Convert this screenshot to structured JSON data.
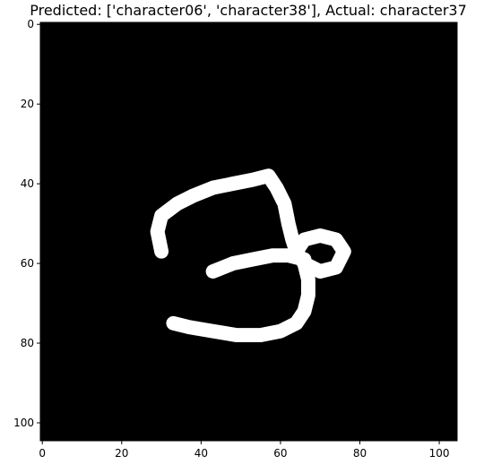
{
  "chart_data": {
    "type": "image",
    "title": "Predicted: ['character06', 'character38'], Actual: character37",
    "image_size": [
      105,
      105
    ],
    "colormap": "gray",
    "background_color": "#000000",
    "stroke_color": "#ffffff",
    "xlim": [
      -0.5,
      104.5
    ],
    "ylim": [
      104.5,
      -0.5
    ],
    "y_inverted": true,
    "xticks": [
      0,
      20,
      40,
      60,
      80,
      100
    ],
    "yticks": [
      0,
      20,
      40,
      60,
      80,
      100
    ],
    "xlabel": "",
    "ylabel": "",
    "grid": false,
    "strokes": [
      {
        "name": "upper-loop",
        "points": [
          [
            30,
            57
          ],
          [
            29,
            52
          ],
          [
            30,
            48
          ],
          [
            34,
            45
          ],
          [
            38,
            43
          ],
          [
            43,
            41
          ],
          [
            48,
            40
          ],
          [
            53,
            39
          ],
          [
            57,
            38
          ],
          [
            59,
            41
          ],
          [
            61,
            45
          ],
          [
            62,
            50
          ],
          [
            63,
            54
          ],
          [
            64,
            57
          ]
        ]
      },
      {
        "name": "small-loop",
        "points": [
          [
            64,
            57
          ],
          [
            66,
            54
          ],
          [
            70,
            53
          ],
          [
            74,
            54
          ],
          [
            76,
            57
          ],
          [
            74,
            61
          ],
          [
            70,
            62
          ],
          [
            66,
            60
          ],
          [
            64,
            57
          ]
        ]
      },
      {
        "name": "middle-bar",
        "points": [
          [
            43,
            62
          ],
          [
            48,
            60
          ],
          [
            53,
            59
          ],
          [
            58,
            58
          ],
          [
            62,
            58
          ],
          [
            66,
            59
          ]
        ]
      },
      {
        "name": "lower-curve",
        "points": [
          [
            66,
            60
          ],
          [
            67,
            64
          ],
          [
            67,
            68
          ],
          [
            66,
            72
          ],
          [
            64,
            75
          ],
          [
            60,
            77
          ],
          [
            55,
            78
          ],
          [
            49,
            78
          ],
          [
            43,
            77
          ],
          [
            37,
            76
          ],
          [
            33,
            75
          ]
        ]
      }
    ],
    "stroke_width": 3.6
  }
}
